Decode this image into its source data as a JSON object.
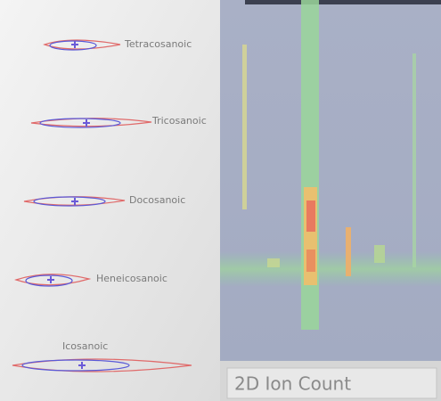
{
  "left_panel": {
    "compounds": [
      {
        "label": "Tetracosanoic"
      },
      {
        "label": "Tricosanoic"
      },
      {
        "label": "Docosanoic"
      },
      {
        "label": "Heneicosanoic"
      },
      {
        "label": "Icosanoic"
      }
    ]
  },
  "right_panel": {
    "caption": "2D Ion Count"
  }
}
